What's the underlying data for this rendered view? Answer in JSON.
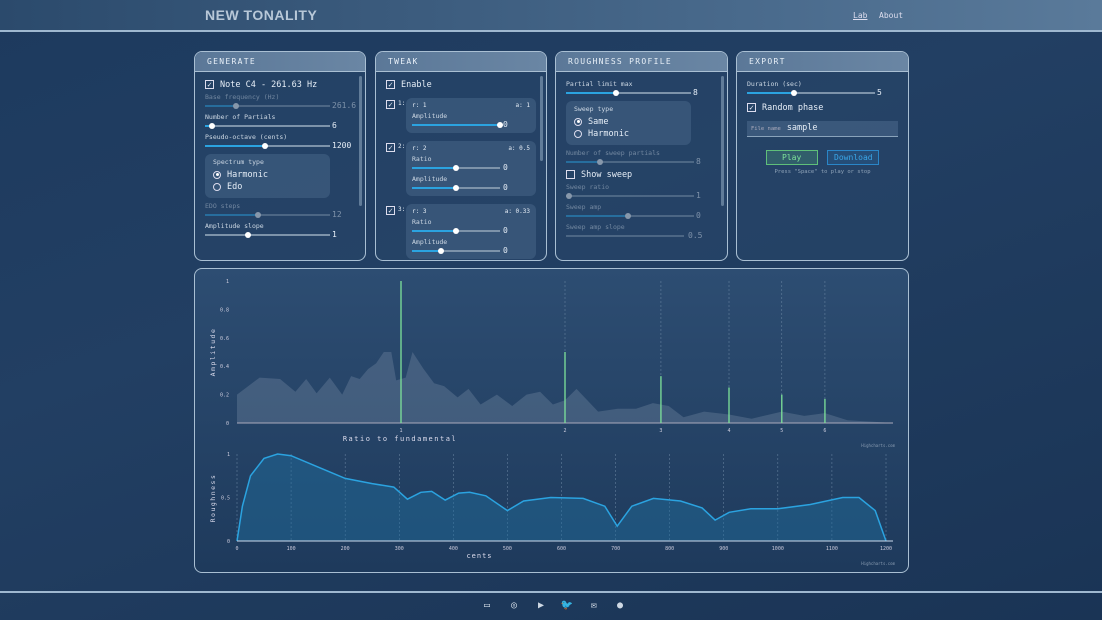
{
  "header": {
    "logo": "NEW TONALITY",
    "nav": [
      {
        "label": "Lab",
        "active": true
      },
      {
        "label": "About",
        "active": false
      }
    ]
  },
  "generate": {
    "title": "GENERATE",
    "note_label": "Note C4 - 261.63 Hz",
    "note_checked": true,
    "base_freq": {
      "label": "Base frequency (Hz)",
      "value": "261.6",
      "fraction": 0.25,
      "disabled": true
    },
    "partials": {
      "label": "Number of Partials",
      "value": "6",
      "fraction": 0.05
    },
    "octave": {
      "label": "Pseudo-octave (cents)",
      "value": "1200",
      "fraction": 0.48
    },
    "spectrum": {
      "label": "Spectrum type",
      "options": [
        "Harmonic",
        "Edo"
      ],
      "selected": "Harmonic"
    },
    "edo": {
      "label": "EDO steps",
      "value": "12",
      "fraction": 0.45,
      "disabled": true
    },
    "slope": {
      "label": "Amplitude slope",
      "value": "1"
    }
  },
  "tweak": {
    "title": "TWEAK",
    "enable_label": "Enable",
    "partials": [
      {
        "index": "1:",
        "ratio": "r: 1",
        "amp": "a: 1",
        "rows": [
          {
            "label": "Amplitude",
            "value": "0",
            "fraction": 1.0
          }
        ]
      },
      {
        "index": "2:",
        "ratio": "r: 2",
        "amp": "a: 0.5",
        "rows": [
          {
            "label": "Ratio",
            "value": "0",
            "fraction": 0.5
          },
          {
            "label": "Amplitude",
            "value": "0",
            "fraction": 0.5
          }
        ]
      },
      {
        "index": "3:",
        "ratio": "r: 3",
        "amp": "a: 0.33",
        "rows": [
          {
            "label": "Ratio",
            "value": "0",
            "fraction": 0.5
          },
          {
            "label": "Amplitude",
            "value": "0",
            "fraction": 0.33
          }
        ]
      }
    ]
  },
  "roughness": {
    "title": "ROUGHNESS PROFILE",
    "limit": {
      "label": "Partial limit max",
      "value": "8",
      "fraction": 0.4
    },
    "sweep": {
      "label": "Sweep type",
      "options": [
        "Same",
        "Harmonic"
      ],
      "selected": "Same"
    },
    "sweep_partials": {
      "label": "Number of sweep partials",
      "value": "8",
      "fraction": 0.25
    },
    "show_sweep": "Show sweep",
    "sweep_ratio": {
      "label": "Sweep ratio",
      "value": "1",
      "fraction": 0.0
    },
    "sweep_amp": {
      "label": "Sweep amp",
      "value": "0",
      "fraction": 0.5
    },
    "sweep_slope": {
      "label": "Sweep amp slope",
      "value": "0.5"
    }
  },
  "export": {
    "title": "EXPORT",
    "duration": {
      "label": "Duration (sec)",
      "value": "5",
      "fraction": 0.35
    },
    "random_phase": "Random phase",
    "file_label": "File name",
    "file_value": "sample",
    "play": "Play",
    "download": "Download",
    "hint": "Press \"Space\" to play or stop"
  },
  "chart_data": [
    {
      "type": "bar",
      "xlabel": "Ratio to fundamental",
      "ylabel": "Amplitude",
      "xscale": "log",
      "xlim": [
        0.5,
        8
      ],
      "ylim": [
        0,
        1
      ],
      "yticks": [
        "0",
        "0.2",
        "0.4",
        "0.6",
        "0.8",
        "1"
      ],
      "xticks": [
        "1",
        "2",
        "3",
        "4",
        "5",
        "6"
      ],
      "x": [
        1,
        2,
        3,
        4,
        5,
        6
      ],
      "values": [
        1,
        0.5,
        0.33,
        0.25,
        0.2,
        0.17
      ],
      "bar_color": "#7ee39a",
      "background_area": {
        "x": [
          0.5,
          0.55,
          0.6,
          0.64,
          0.67,
          0.7,
          0.74,
          0.78,
          0.81,
          0.84,
          0.87,
          0.9,
          0.93,
          0.96,
          0.98,
          1.02,
          1.05,
          1.1,
          1.15,
          1.2,
          1.27,
          1.33,
          1.4,
          1.5,
          1.6,
          1.7,
          1.8,
          1.9,
          2.0,
          2.1,
          2.3,
          2.5,
          2.7,
          2.9,
          3.1,
          3.3,
          3.6,
          4.0,
          4.4,
          5.0,
          5.5,
          6.0,
          6.6,
          7.3,
          8.0
        ],
        "y": [
          0.2,
          0.32,
          0.31,
          0.22,
          0.31,
          0.21,
          0.32,
          0.2,
          0.33,
          0.31,
          0.38,
          0.42,
          0.5,
          0.5,
          0.3,
          0.32,
          0.5,
          0.38,
          0.28,
          0.26,
          0.18,
          0.24,
          0.13,
          0.2,
          0.12,
          0.2,
          0.22,
          0.13,
          0.16,
          0.24,
          0.08,
          0.1,
          0.1,
          0.14,
          0.12,
          0.04,
          0.08,
          0.06,
          0.03,
          0.08,
          0.05,
          0.07,
          0.02,
          0.01,
          0.0
        ]
      },
      "credit": "Highcharts.com"
    },
    {
      "type": "area",
      "xlabel": "cents",
      "ylabel": "Roughness",
      "xlim": [
        0,
        1200
      ],
      "ylim": [
        0,
        1
      ],
      "xticks": [
        "0",
        "100",
        "200",
        "300",
        "400",
        "500",
        "600",
        "700",
        "800",
        "900",
        "1000",
        "1100",
        "1200"
      ],
      "yticks": [
        "0",
        "0.5",
        "1"
      ],
      "x": [
        0,
        10,
        25,
        50,
        75,
        100,
        150,
        200,
        250,
        290,
        315,
        340,
        360,
        385,
        410,
        430,
        460,
        500,
        530,
        580,
        640,
        680,
        703,
        730,
        770,
        820,
        860,
        884,
        910,
        950,
        1000,
        1060,
        1120,
        1150,
        1180,
        1200
      ],
      "values": [
        0,
        0.4,
        0.75,
        0.95,
        1.0,
        0.98,
        0.85,
        0.72,
        0.66,
        0.62,
        0.48,
        0.56,
        0.57,
        0.47,
        0.55,
        0.56,
        0.52,
        0.35,
        0.46,
        0.5,
        0.49,
        0.4,
        0.17,
        0.4,
        0.49,
        0.46,
        0.38,
        0.24,
        0.33,
        0.37,
        0.37,
        0.42,
        0.5,
        0.5,
        0.35,
        0
      ],
      "line_color": "#2ba3e0",
      "credit": "Highcharts.com"
    }
  ],
  "footer": {
    "icons": [
      "patreon-icon",
      "compass-icon",
      "youtube-icon",
      "twitter-icon",
      "mail-icon",
      "github-icon"
    ]
  }
}
